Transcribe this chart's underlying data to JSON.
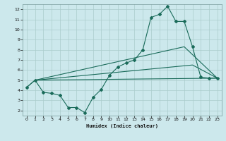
{
  "xlabel": "Humidex (Indice chaleur)",
  "background_color": "#cce8ec",
  "grid_color": "#aacccc",
  "line_color": "#1a6b5a",
  "xlim": [
    -0.5,
    23.5
  ],
  "ylim": [
    1.5,
    12.5
  ],
  "xticks": [
    0,
    1,
    2,
    3,
    4,
    5,
    6,
    7,
    8,
    9,
    10,
    11,
    12,
    13,
    14,
    15,
    16,
    17,
    18,
    19,
    20,
    21,
    22,
    23
  ],
  "yticks": [
    2,
    3,
    4,
    5,
    6,
    7,
    8,
    9,
    10,
    11,
    12
  ],
  "line1_x": [
    0,
    1,
    2,
    3,
    4,
    5,
    6,
    7,
    8,
    9,
    10,
    11,
    12,
    13,
    14,
    15,
    16,
    17,
    18,
    19,
    20,
    21,
    22,
    23
  ],
  "line1_y": [
    4.3,
    5.0,
    3.8,
    3.7,
    3.5,
    2.3,
    2.3,
    1.8,
    3.3,
    4.1,
    5.5,
    6.3,
    6.7,
    7.0,
    8.0,
    11.2,
    11.5,
    12.3,
    10.8,
    10.8,
    8.3,
    5.3,
    5.2,
    5.2
  ],
  "line2_x": [
    0,
    1,
    23
  ],
  "line2_y": [
    4.3,
    5.0,
    5.2
  ],
  "line3_x": [
    1,
    19,
    23
  ],
  "line3_y": [
    5.0,
    8.3,
    5.2
  ],
  "line4_x": [
    1,
    20,
    23
  ],
  "line4_y": [
    5.0,
    6.5,
    5.2
  ]
}
